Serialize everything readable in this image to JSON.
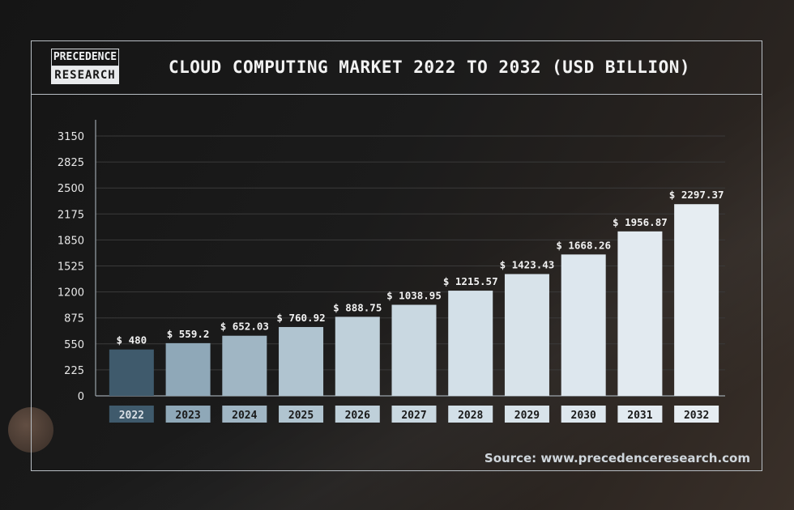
{
  "logo": {
    "line1": "PRECEDENCE",
    "line2": "RESEARCH"
  },
  "title": "CLOUD COMPUTING MARKET 2022 TO 2032 (USD BILLION)",
  "source": "Source: www.precedenceresearch.com",
  "chart_data": {
    "type": "bar",
    "title": "CLOUD COMPUTING MARKET 2022 TO 2032 (USD BILLION)",
    "xlabel": "",
    "ylabel": "",
    "categories": [
      "2022",
      "2023",
      "2024",
      "2025",
      "2026",
      "2027",
      "2028",
      "2029",
      "2030",
      "2031",
      "2032"
    ],
    "values": [
      480,
      559.2,
      652.03,
      760.92,
      888.75,
      1038.95,
      1215.57,
      1423.43,
      1668.26,
      1956.87,
      2297.37
    ],
    "data_labels": [
      "$ 480",
      "$ 559.2",
      "$ 652.03",
      "$ 760.92",
      "$ 888.75",
      "$ 1038.95",
      "$ 1215.57",
      "$ 1423.43",
      "$ 1668.26",
      "$ 1956.87",
      "$ 2297.37"
    ],
    "y_ticks": [
      0,
      225,
      550,
      875,
      1200,
      1525,
      1850,
      2175,
      2500,
      2825,
      3150
    ],
    "ylim": [
      0,
      3150
    ],
    "grid": true,
    "legend": "none",
    "bar_colors": [
      "#3f5a6c",
      "#8fa8b8",
      "#a0b6c4",
      "#b0c4d0",
      "#bfd0da",
      "#c9d8e1",
      "#d3e0e8",
      "#d8e3ea",
      "#dde7ee",
      "#e2eaf0",
      "#e6edf2"
    ],
    "category_label_colors": [
      "#3f5a6c",
      "#8fa8b8",
      "#a0b6c4",
      "#b0c4d0",
      "#bfd0da",
      "#c9d8e1",
      "#d3e0e8",
      "#d8e3ea",
      "#dde7ee",
      "#e2eaf0",
      "#e6edf2"
    ],
    "category_text_colors": [
      "#d8dee4",
      "#1a1a1a",
      "#1a1a1a",
      "#1a1a1a",
      "#1a1a1a",
      "#1a1a1a",
      "#1a1a1a",
      "#1a1a1a",
      "#1a1a1a",
      "#1a1a1a",
      "#1a1a1a"
    ]
  }
}
